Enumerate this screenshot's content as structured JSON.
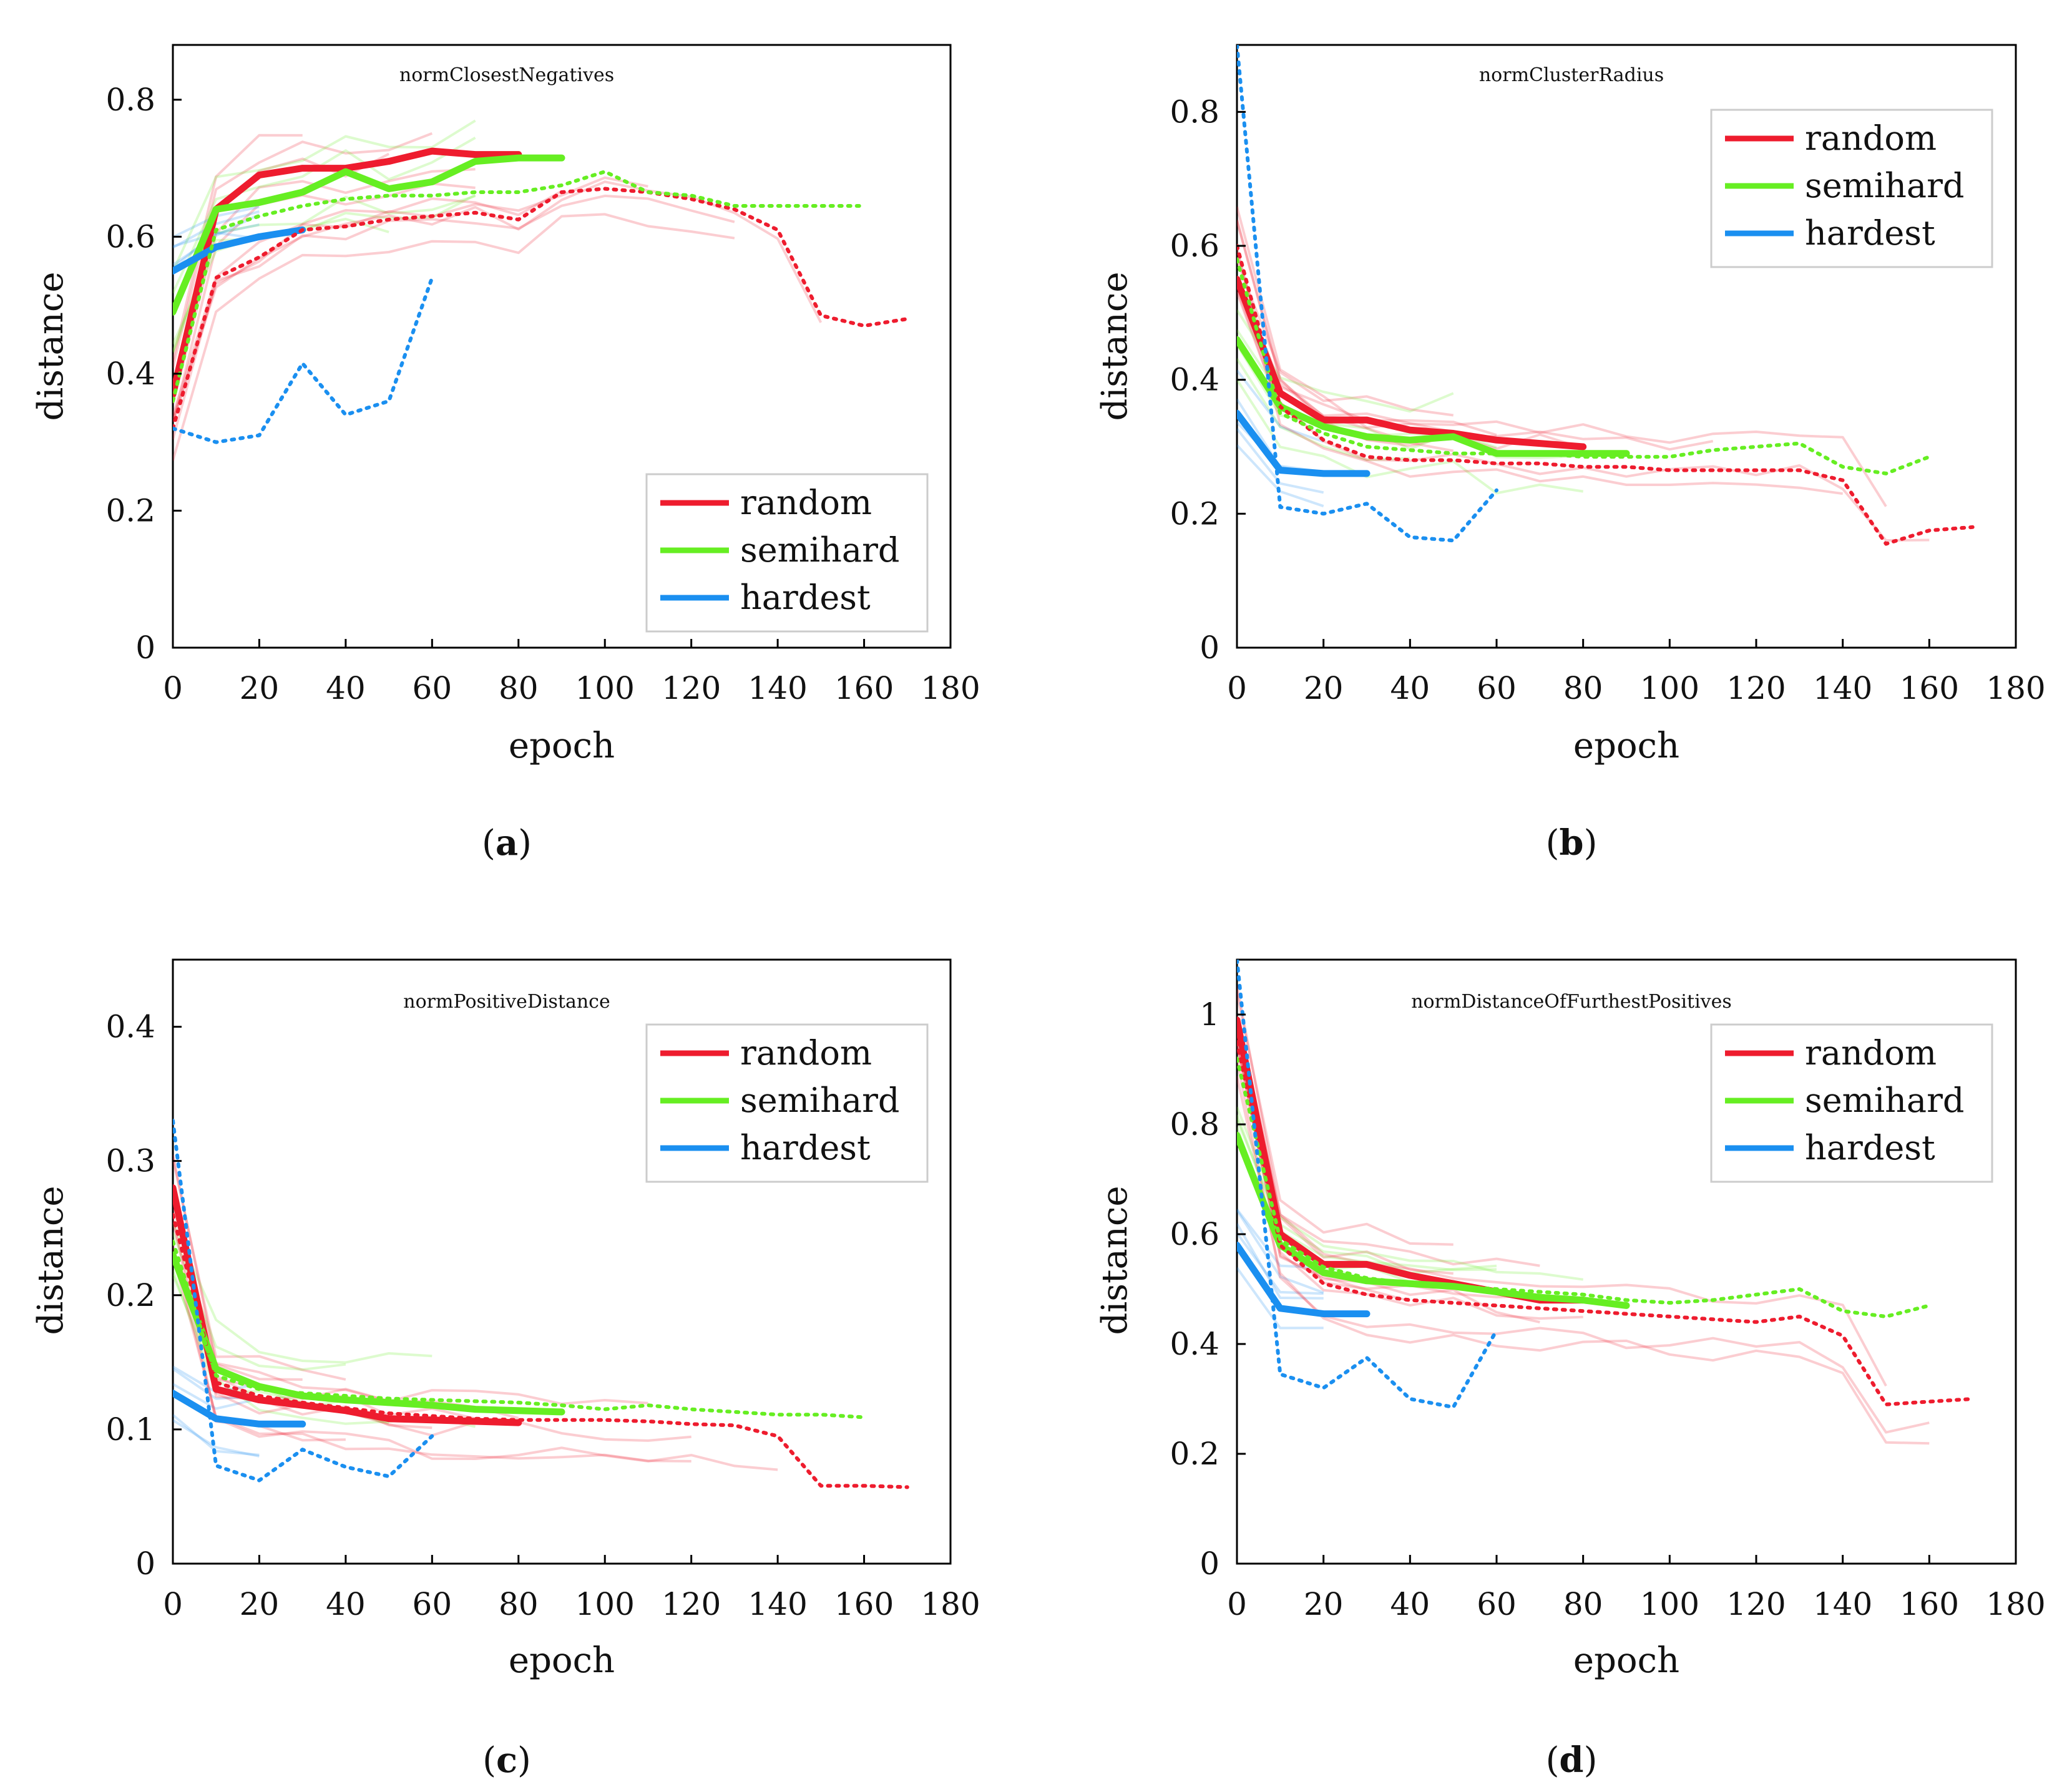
{
  "chart_data": [
    {
      "panel": "a",
      "type": "line",
      "title": "normClosestNegatives",
      "xlabel": "epoch",
      "ylabel": "distance",
      "xlim": [
        0,
        180
      ],
      "ylim": [
        0,
        0.88
      ],
      "xticks": [
        0,
        20,
        40,
        60,
        80,
        100,
        120,
        140,
        160,
        180
      ],
      "xtick_labels": [
        "0",
        "20",
        "40",
        "60",
        "80",
        "100",
        "120",
        "140",
        "160",
        "180"
      ],
      "yticks": [
        0,
        0.2,
        0.4,
        0.6,
        0.8
      ],
      "ytick_labels": [
        "0",
        "0.2",
        "0.4",
        "0.6",
        "0.8"
      ],
      "legend_position": "bottom-right",
      "legend": [
        "random",
        "semihard",
        "hardest"
      ],
      "series": [
        {
          "name": "random",
          "style": "solid",
          "x": [
            0,
            10,
            20,
            30,
            40,
            50,
            60,
            70,
            80
          ],
          "y": [
            0.37,
            0.64,
            0.69,
            0.7,
            0.7,
            0.71,
            0.725,
            0.72,
            0.72
          ]
        },
        {
          "name": "semihard",
          "style": "solid",
          "x": [
            0,
            10,
            20,
            30,
            40,
            50,
            60,
            70,
            80,
            90
          ],
          "y": [
            0.49,
            0.64,
            0.65,
            0.665,
            0.695,
            0.67,
            0.68,
            0.71,
            0.715,
            0.715
          ]
        },
        {
          "name": "hardest",
          "style": "solid",
          "x": [
            0,
            10,
            20,
            30
          ],
          "y": [
            0.55,
            0.585,
            0.6,
            0.61
          ]
        },
        {
          "name": "random",
          "style": "dotted",
          "x": [
            0,
            10,
            20,
            30,
            40,
            50,
            60,
            70,
            80,
            90,
            100,
            110,
            120,
            130,
            140,
            150,
            160,
            170
          ],
          "y": [
            0.32,
            0.54,
            0.57,
            0.61,
            0.615,
            0.625,
            0.63,
            0.635,
            0.625,
            0.665,
            0.67,
            0.665,
            0.655,
            0.64,
            0.61,
            0.485,
            0.47,
            0.48
          ]
        },
        {
          "name": "semihard",
          "style": "dotted",
          "x": [
            0,
            10,
            20,
            30,
            40,
            50,
            60,
            70,
            80,
            90,
            100,
            110,
            120,
            130,
            140,
            150,
            160
          ],
          "y": [
            0.36,
            0.61,
            0.63,
            0.645,
            0.655,
            0.66,
            0.66,
            0.665,
            0.665,
            0.675,
            0.695,
            0.665,
            0.66,
            0.645,
            0.645,
            0.645,
            0.645
          ]
        },
        {
          "name": "hardest",
          "style": "dotted",
          "x": [
            0,
            10,
            20,
            30,
            40,
            50,
            60
          ],
          "y": [
            0.32,
            0.3,
            0.31,
            0.415,
            0.34,
            0.36,
            0.54
          ]
        }
      ]
    },
    {
      "panel": "b",
      "type": "line",
      "title": "normClusterRadius",
      "xlabel": "epoch",
      "ylabel": "distance",
      "xlim": [
        0,
        180
      ],
      "ylim": [
        0,
        0.9
      ],
      "xticks": [
        0,
        20,
        40,
        60,
        80,
        100,
        120,
        140,
        160,
        180
      ],
      "xtick_labels": [
        "0",
        "20",
        "40",
        "60",
        "80",
        "100",
        "120",
        "140",
        "160",
        "180"
      ],
      "yticks": [
        0,
        0.2,
        0.4,
        0.6,
        0.8
      ],
      "ytick_labels": [
        "0",
        "0.2",
        "0.4",
        "0.6",
        "0.8"
      ],
      "legend_position": "top-right",
      "legend": [
        "random",
        "semihard",
        "hardest"
      ],
      "series": [
        {
          "name": "random",
          "style": "solid",
          "x": [
            0,
            10,
            20,
            30,
            40,
            50,
            60,
            70,
            80
          ],
          "y": [
            0.55,
            0.38,
            0.34,
            0.34,
            0.325,
            0.32,
            0.31,
            0.305,
            0.3
          ]
        },
        {
          "name": "semihard",
          "style": "solid",
          "x": [
            0,
            10,
            20,
            30,
            40,
            50,
            60,
            70,
            80,
            90
          ],
          "y": [
            0.46,
            0.36,
            0.33,
            0.315,
            0.31,
            0.315,
            0.29,
            0.29,
            0.29,
            0.29
          ]
        },
        {
          "name": "hardest",
          "style": "solid",
          "x": [
            0,
            10,
            20,
            30
          ],
          "y": [
            0.35,
            0.265,
            0.26,
            0.26
          ]
        },
        {
          "name": "random",
          "style": "dotted",
          "x": [
            0,
            10,
            20,
            30,
            40,
            50,
            60,
            70,
            80,
            90,
            100,
            110,
            120,
            130,
            140,
            150,
            160,
            170
          ],
          "y": [
            0.6,
            0.36,
            0.31,
            0.285,
            0.28,
            0.28,
            0.275,
            0.275,
            0.27,
            0.27,
            0.265,
            0.265,
            0.265,
            0.265,
            0.25,
            0.155,
            0.175,
            0.18
          ]
        },
        {
          "name": "semihard",
          "style": "dotted",
          "x": [
            0,
            10,
            20,
            30,
            40,
            50,
            60,
            70,
            80,
            90,
            100,
            110,
            120,
            130,
            140,
            150,
            160
          ],
          "y": [
            0.58,
            0.35,
            0.32,
            0.3,
            0.295,
            0.29,
            0.29,
            0.29,
            0.285,
            0.285,
            0.285,
            0.295,
            0.3,
            0.305,
            0.27,
            0.26,
            0.285
          ]
        },
        {
          "name": "hardest",
          "style": "dotted",
          "x": [
            0,
            10,
            20,
            30,
            40,
            50,
            60
          ],
          "y": [
            0.9,
            0.21,
            0.2,
            0.215,
            0.165,
            0.16,
            0.235
          ]
        }
      ]
    },
    {
      "panel": "c",
      "type": "line",
      "title": "normPositiveDistance",
      "xlabel": "epoch",
      "ylabel": "distance",
      "xlim": [
        0,
        180
      ],
      "ylim": [
        0,
        0.45
      ],
      "xticks": [
        0,
        20,
        40,
        60,
        80,
        100,
        120,
        140,
        160,
        180
      ],
      "xtick_labels": [
        "0",
        "20",
        "40",
        "60",
        "80",
        "100",
        "120",
        "140",
        "160",
        "180"
      ],
      "yticks": [
        0,
        0.1,
        0.2,
        0.3,
        0.4
      ],
      "ytick_labels": [
        "0",
        "0.1",
        "0.2",
        "0.3",
        "0.4"
      ],
      "legend_position": "top-right",
      "legend": [
        "random",
        "semihard",
        "hardest"
      ],
      "series": [
        {
          "name": "random",
          "style": "solid",
          "x": [
            0,
            10,
            20,
            30,
            40,
            50,
            60,
            70,
            80
          ],
          "y": [
            0.28,
            0.13,
            0.122,
            0.118,
            0.114,
            0.108,
            0.107,
            0.106,
            0.105
          ]
        },
        {
          "name": "semihard",
          "style": "solid",
          "x": [
            0,
            10,
            20,
            30,
            40,
            50,
            60,
            70,
            80,
            90
          ],
          "y": [
            0.23,
            0.145,
            0.132,
            0.125,
            0.122,
            0.12,
            0.118,
            0.115,
            0.114,
            0.113
          ]
        },
        {
          "name": "hardest",
          "style": "solid",
          "x": [
            0,
            10,
            20,
            30
          ],
          "y": [
            0.127,
            0.108,
            0.104,
            0.104
          ]
        },
        {
          "name": "random",
          "style": "dotted",
          "x": [
            0,
            10,
            20,
            30,
            40,
            50,
            60,
            70,
            80,
            90,
            100,
            110,
            120,
            130,
            140,
            150,
            160,
            170
          ],
          "y": [
            0.26,
            0.135,
            0.125,
            0.12,
            0.116,
            0.112,
            0.11,
            0.108,
            0.107,
            0.107,
            0.107,
            0.106,
            0.104,
            0.103,
            0.095,
            0.058,
            0.058,
            0.057
          ]
        },
        {
          "name": "semihard",
          "style": "dotted",
          "x": [
            0,
            10,
            20,
            30,
            40,
            50,
            60,
            70,
            80,
            90,
            100,
            110,
            120,
            130,
            140,
            150,
            160
          ],
          "y": [
            0.24,
            0.14,
            0.13,
            0.127,
            0.125,
            0.123,
            0.122,
            0.121,
            0.12,
            0.118,
            0.115,
            0.118,
            0.115,
            0.113,
            0.111,
            0.111,
            0.109
          ]
        },
        {
          "name": "hardest",
          "style": "dotted",
          "x": [
            0,
            10,
            20,
            30,
            40,
            50,
            60
          ],
          "y": [
            0.33,
            0.073,
            0.062,
            0.085,
            0.072,
            0.065,
            0.095
          ]
        }
      ]
    },
    {
      "panel": "d",
      "type": "line",
      "title": "normDistanceOfFurthestPositives",
      "xlabel": "epoch",
      "ylabel": "distance",
      "xlim": [
        0,
        180
      ],
      "ylim": [
        0,
        1.1
      ],
      "xticks": [
        0,
        20,
        40,
        60,
        80,
        100,
        120,
        140,
        160,
        180
      ],
      "xtick_labels": [
        "0",
        "20",
        "40",
        "60",
        "80",
        "100",
        "120",
        "140",
        "160",
        "180"
      ],
      "yticks": [
        0,
        0.2,
        0.4,
        0.6,
        0.8,
        1.0
      ],
      "ytick_labels": [
        "0",
        "0.2",
        "0.4",
        "0.6",
        "0.8",
        "1"
      ],
      "legend_position": "top-right",
      "legend": [
        "random",
        "semihard",
        "hardest"
      ],
      "series": [
        {
          "name": "random",
          "style": "solid",
          "x": [
            0,
            10,
            20,
            30,
            40,
            50,
            60,
            70,
            80
          ],
          "y": [
            0.99,
            0.6,
            0.545,
            0.545,
            0.525,
            0.51,
            0.495,
            0.48,
            0.48
          ]
        },
        {
          "name": "semihard",
          "style": "solid",
          "x": [
            0,
            10,
            20,
            30,
            40,
            50,
            60,
            70,
            80,
            90
          ],
          "y": [
            0.78,
            0.58,
            0.53,
            0.515,
            0.51,
            0.505,
            0.495,
            0.485,
            0.48,
            0.47
          ]
        },
        {
          "name": "hardest",
          "style": "solid",
          "x": [
            0,
            10,
            20,
            30
          ],
          "y": [
            0.58,
            0.465,
            0.455,
            0.455
          ]
        },
        {
          "name": "random",
          "style": "dotted",
          "x": [
            0,
            10,
            20,
            30,
            40,
            50,
            60,
            70,
            80,
            90,
            100,
            110,
            120,
            130,
            140,
            150,
            160,
            170
          ],
          "y": [
            0.95,
            0.58,
            0.51,
            0.49,
            0.48,
            0.475,
            0.47,
            0.465,
            0.46,
            0.455,
            0.45,
            0.445,
            0.44,
            0.45,
            0.415,
            0.29,
            0.295,
            0.3
          ]
        },
        {
          "name": "semihard",
          "style": "dotted",
          "x": [
            0,
            10,
            20,
            30,
            40,
            50,
            60,
            70,
            80,
            90,
            100,
            110,
            120,
            130,
            140,
            150,
            160
          ],
          "y": [
            0.92,
            0.59,
            0.54,
            0.52,
            0.51,
            0.505,
            0.5,
            0.495,
            0.49,
            0.48,
            0.475,
            0.48,
            0.49,
            0.5,
            0.46,
            0.45,
            0.47
          ]
        },
        {
          "name": "hardest",
          "style": "dotted",
          "x": [
            0,
            10,
            20,
            30,
            40,
            50,
            60
          ],
          "y": [
            1.1,
            0.345,
            0.32,
            0.375,
            0.3,
            0.285,
            0.425
          ]
        }
      ]
    }
  ],
  "panel_labels": [
    {
      "open": "(",
      "letter": "a",
      "close": ")"
    },
    {
      "open": "(",
      "letter": "b",
      "close": ")"
    },
    {
      "open": "(",
      "letter": "c",
      "close": ")"
    },
    {
      "open": "(",
      "letter": "d",
      "close": ")"
    }
  ],
  "colors": {
    "random": "#ee1c2e",
    "semihard": "#66ee22",
    "hardest": "#1a8ff0"
  }
}
